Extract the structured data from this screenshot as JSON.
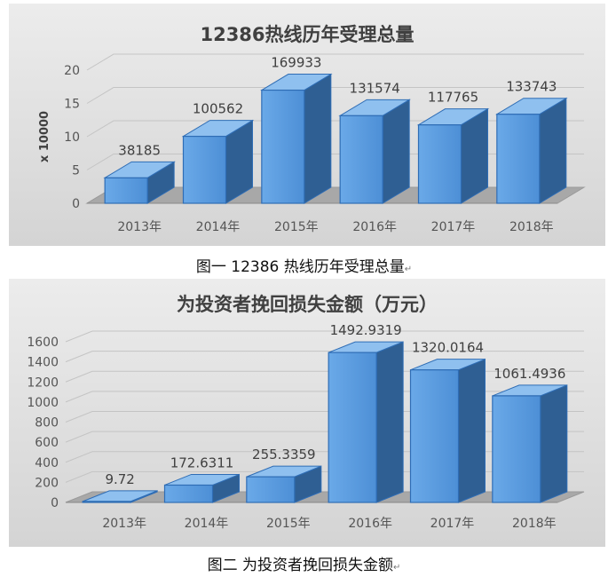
{
  "figures": [
    {
      "caption": "图一 12386 热线历年受理总量",
      "caption_mark": "↵"
    },
    {
      "caption": "图二 为投资者挽回损失金额",
      "caption_mark": "↵"
    }
  ],
  "chart_data": [
    {
      "type": "bar",
      "title": "12386热线历年受理总量",
      "xlabel": "",
      "ylabel": "x 10000",
      "categories": [
        "2013年",
        "2014年",
        "2015年",
        "2016年",
        "2017年",
        "2018年"
      ],
      "values": [
        38185,
        100562,
        169933,
        131574,
        117765,
        133743
      ],
      "data_labels": [
        "38185",
        "100562",
        "169933",
        "131574",
        "117765",
        "133743"
      ],
      "axis_scale_divisor": 10000,
      "ylim": [
        0,
        20
      ],
      "yticks": [
        0,
        5,
        10,
        15,
        20
      ],
      "grid": true,
      "style": "3d-column",
      "background": "#dcdcdc",
      "bar_color": "#5b9bd5"
    },
    {
      "type": "bar",
      "title": "为投资者挽回损失金额（万元）",
      "xlabel": "",
      "ylabel": "",
      "categories": [
        "2013年",
        "2014年",
        "2015年",
        "2016年",
        "2017年",
        "2018年"
      ],
      "values": [
        9.72,
        172.6311,
        255.3359,
        1492.9319,
        1320.0164,
        1061.4936
      ],
      "data_labels": [
        "9.72",
        "172.6311",
        "255.3359",
        "1492.9319",
        "1320.0164",
        "1061.4936"
      ],
      "axis_scale_divisor": 1,
      "ylim": [
        0,
        1600
      ],
      "yticks": [
        0,
        200,
        400,
        600,
        800,
        1000,
        1200,
        1400,
        1600
      ],
      "grid": true,
      "style": "3d-column",
      "background": "#dcdcdc",
      "bar_color": "#5b9bd5"
    }
  ]
}
